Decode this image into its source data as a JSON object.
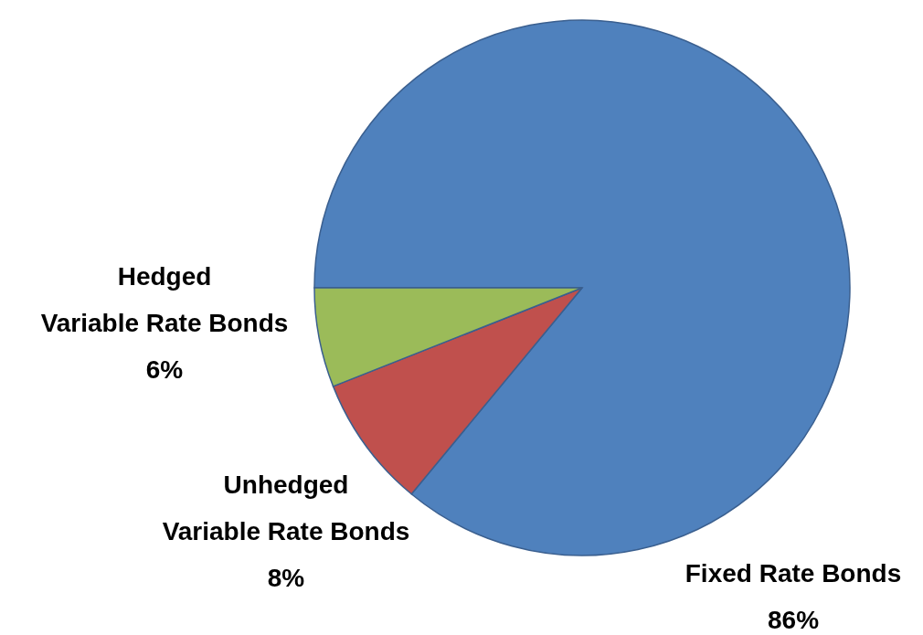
{
  "chart_data": {
    "type": "pie",
    "categories": [
      "Fixed Rate Bonds",
      "Unhedged\nVariable Rate Bonds",
      "Hedged\nVariable Rate Bonds"
    ],
    "values": [
      86,
      8,
      6
    ],
    "colors": [
      "#4f81bd",
      "#c0504d",
      "#9bbb59"
    ],
    "value_labels": [
      "86%",
      "8%",
      "6%"
    ]
  }
}
